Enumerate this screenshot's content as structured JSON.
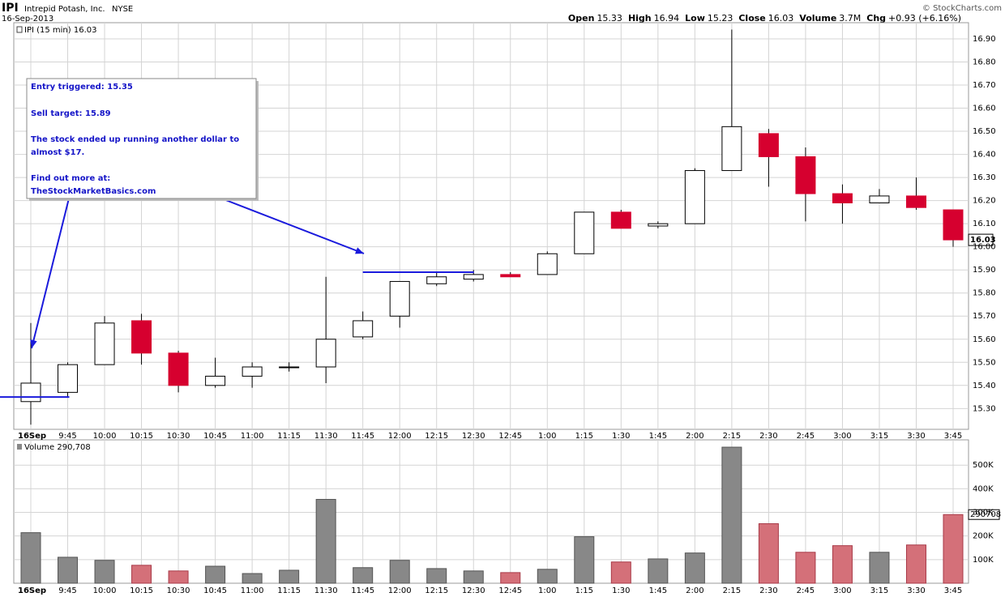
{
  "header": {
    "symbol": "IPI",
    "company": "Intrepid Potash, Inc.",
    "exchange": "NYSE",
    "date": "16-Sep-2013",
    "credit": "© StockCharts.com",
    "stats": [
      {
        "label": "Open",
        "value": 15.33
      },
      {
        "label": "High",
        "value": 16.94
      },
      {
        "label": "Low",
        "value": 15.23
      },
      {
        "label": "Close",
        "value": 16.03
      },
      {
        "label": "Volume",
        "value": "3.7M"
      },
      {
        "label": "Chg",
        "value": "+0.93 (+6.16%)"
      }
    ]
  },
  "chart_data": [
    {
      "type": "candlestick",
      "legend": "IPI (15 min) 16.03",
      "categories": [
        "16Sep",
        "9:45",
        "10:00",
        "10:15",
        "10:30",
        "10:45",
        "11:00",
        "11:15",
        "11:30",
        "11:45",
        "12:00",
        "12:15",
        "12:30",
        "12:45",
        "1:00",
        "1:15",
        "1:30",
        "1:45",
        "2:00",
        "2:15",
        "2:30",
        "2:45",
        "3:00",
        "3:15",
        "3:30",
        "3:45"
      ],
      "open": [
        15.33,
        15.37,
        15.49,
        15.68,
        15.54,
        15.4,
        15.44,
        15.48,
        15.48,
        15.61,
        15.7,
        15.84,
        15.86,
        15.88,
        15.88,
        15.97,
        16.15,
        16.09,
        16.1,
        16.33,
        16.49,
        16.39,
        16.23,
        16.19,
        16.22,
        16.16
      ],
      "high": [
        15.67,
        15.5,
        15.7,
        15.71,
        15.55,
        15.52,
        15.5,
        15.5,
        15.87,
        15.72,
        15.85,
        15.89,
        15.9,
        15.89,
        15.98,
        16.15,
        16.16,
        16.11,
        16.34,
        16.94,
        16.51,
        16.43,
        16.27,
        16.25,
        16.3,
        16.16
      ],
      "low": [
        15.23,
        15.35,
        15.49,
        15.49,
        15.37,
        15.39,
        15.39,
        15.46,
        15.41,
        15.6,
        15.65,
        15.83,
        15.85,
        15.87,
        15.88,
        15.97,
        16.08,
        16.08,
        16.1,
        16.33,
        16.26,
        16.11,
        16.1,
        16.19,
        16.16,
        16.0
      ],
      "close": [
        15.41,
        15.49,
        15.67,
        15.54,
        15.4,
        15.44,
        15.48,
        15.48,
        15.6,
        15.68,
        15.85,
        15.87,
        15.88,
        15.87,
        15.97,
        16.15,
        16.08,
        16.1,
        16.33,
        16.52,
        16.39,
        16.23,
        16.19,
        16.22,
        16.17,
        16.03
      ],
      "up_color": "#ffffff",
      "down_color": "#d6002f",
      "ylim": [
        15.21,
        16.97
      ],
      "yticks": [
        {
          "value": 15.3,
          "label": "15.30"
        },
        {
          "value": 15.4,
          "label": "15.40"
        },
        {
          "value": 15.5,
          "label": "15.50"
        },
        {
          "value": 15.6,
          "label": "15.60"
        },
        {
          "value": 15.7,
          "label": "15.70"
        },
        {
          "value": 15.8,
          "label": "15.80"
        },
        {
          "value": 15.9,
          "label": "15.90"
        },
        {
          "value": 16.0,
          "label": "16.00"
        },
        {
          "value": 16.1,
          "label": "16.10"
        },
        {
          "value": 16.2,
          "label": "16.20"
        },
        {
          "value": 16.3,
          "label": "16.30"
        },
        {
          "value": 16.4,
          "label": "16.40"
        },
        {
          "value": 16.5,
          "label": "16.50"
        },
        {
          "value": 16.6,
          "label": "16.60"
        },
        {
          "value": 16.7,
          "label": "16.70"
        },
        {
          "value": 16.8,
          "label": "16.80"
        },
        {
          "value": 16.9,
          "label": "16.90"
        }
      ],
      "grid": true,
      "hlines": [
        15.35,
        15.89
      ],
      "hline_color": "#1a1adc",
      "annotation": [
        "Entry triggered: 15.35",
        "Sell target: 15.89",
        "The stock ended up running another dollar to",
        "almost $17.",
        "Find out more at:",
        "TheStockMarketBasics.com"
      ]
    },
    {
      "type": "bar",
      "legend": "Volume 290,708",
      "categories": [
        "16Sep",
        "9:45",
        "10:00",
        "10:15",
        "10:30",
        "10:45",
        "11:00",
        "11:15",
        "11:30",
        "11:45",
        "12:00",
        "12:15",
        "12:30",
        "12:45",
        "1:00",
        "1:15",
        "1:30",
        "1:45",
        "2:00",
        "2:15",
        "2:30",
        "2:45",
        "3:00",
        "3:15",
        "3:30",
        "3:45"
      ],
      "values": [
        214000,
        110000,
        97000,
        76000,
        52000,
        72000,
        41000,
        55000,
        355000,
        66000,
        97000,
        62000,
        52000,
        45000,
        59000,
        197000,
        90000,
        103000,
        128000,
        576000,
        252000,
        131000,
        159000,
        131000,
        162000,
        290708
      ],
      "up_color": "#888888",
      "down_color": "#d47079",
      "ylim": [
        0,
        607000
      ],
      "yticks": [
        {
          "value": 100000,
          "label": "100K"
        },
        {
          "value": 200000,
          "label": "200K"
        },
        {
          "value": 300000,
          "label": "300K"
        },
        {
          "value": 400000,
          "label": "400K"
        },
        {
          "value": 500000,
          "label": "500K"
        }
      ],
      "grid": true
    }
  ]
}
